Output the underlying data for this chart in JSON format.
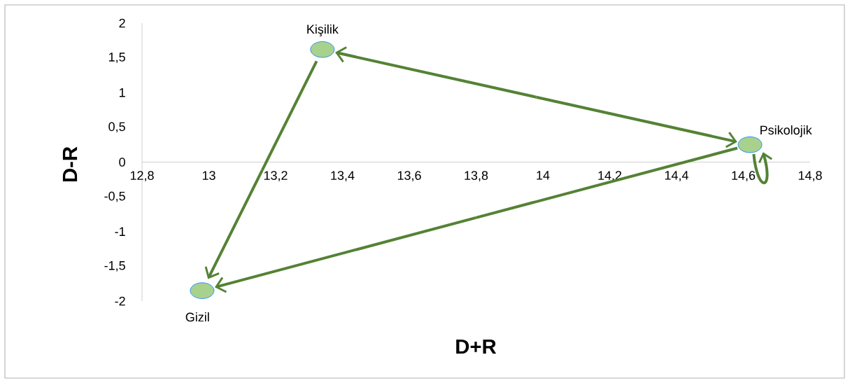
{
  "chart_data": {
    "type": "scatter",
    "xlabel": "D+R",
    "ylabel": "D-R",
    "color": "#a9d18e",
    "x": [
      13.34,
      14.62,
      12.98
    ],
    "values": [
      1.62,
      0.25,
      -1.85
    ],
    "xlim": [
      12.8,
      14.8
    ],
    "ylim": [
      -2,
      2
    ],
    "xticks": [
      {
        "value": 12.8,
        "label": "12,8"
      },
      {
        "value": 13,
        "label": "13"
      },
      {
        "value": 13.2,
        "label": "13,2"
      },
      {
        "value": 13.4,
        "label": "13,4"
      },
      {
        "value": 13.6,
        "label": "13,6"
      },
      {
        "value": 13.8,
        "label": "13,8"
      },
      {
        "value": 14,
        "label": "14"
      },
      {
        "value": 14.2,
        "label": "14,2"
      },
      {
        "value": 14.4,
        "label": "14,4"
      },
      {
        "value": 14.6,
        "label": "14,6"
      },
      {
        "value": 14.8,
        "label": "14,8"
      }
    ],
    "yticks": [
      {
        "value": -2,
        "label": "-2"
      },
      {
        "value": -1.5,
        "label": "-1,5"
      },
      {
        "value": -1,
        "label": "-1"
      },
      {
        "value": -0.5,
        "label": "-0,5"
      },
      {
        "value": 0,
        "label": "0"
      },
      {
        "value": 0.5,
        "label": "0,5"
      },
      {
        "value": 1,
        "label": "1"
      },
      {
        "value": 1.5,
        "label": "1,5"
      },
      {
        "value": 2,
        "label": "2"
      }
    ],
    "annotations": [
      {
        "text": "Kişilik",
        "x": 13.34,
        "y": 1.62
      },
      {
        "text": "Psikolojik",
        "x": 14.62,
        "y": 0.25
      },
      {
        "text": "Gizil",
        "x": 12.98,
        "y": -1.85
      }
    ]
  }
}
